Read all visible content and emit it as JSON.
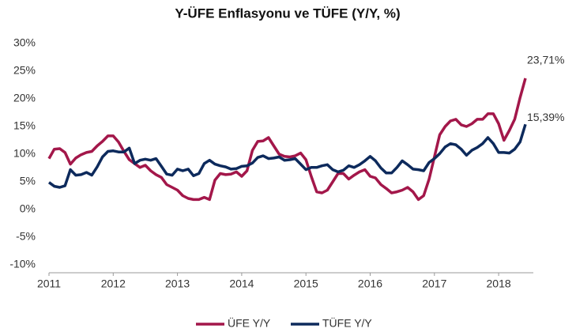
{
  "chart_data": {
    "type": "line",
    "title": "Y-ÜFE Enflasyonu ve TÜFE (Y/Y, %)",
    "x": [
      2011.0,
      2011.083,
      2011.167,
      2011.25,
      2011.333,
      2011.417,
      2011.5,
      2011.583,
      2011.667,
      2011.75,
      2011.833,
      2011.917,
      2012.0,
      2012.083,
      2012.167,
      2012.25,
      2012.333,
      2012.417,
      2012.5,
      2012.583,
      2012.667,
      2012.75,
      2012.833,
      2012.917,
      2013.0,
      2013.083,
      2013.167,
      2013.25,
      2013.333,
      2013.417,
      2013.5,
      2013.583,
      2013.667,
      2013.75,
      2013.833,
      2013.917,
      2014.0,
      2014.083,
      2014.167,
      2014.25,
      2014.333,
      2014.417,
      2014.5,
      2014.583,
      2014.667,
      2014.75,
      2014.833,
      2014.917,
      2015.0,
      2015.083,
      2015.167,
      2015.25,
      2015.333,
      2015.417,
      2015.5,
      2015.583,
      2015.667,
      2015.75,
      2015.833,
      2015.917,
      2016.0,
      2016.083,
      2016.167,
      2016.25,
      2016.333,
      2016.417,
      2016.5,
      2016.583,
      2016.667,
      2016.75,
      2016.833,
      2016.917,
      2017.0,
      2017.083,
      2017.167,
      2017.25,
      2017.333,
      2017.417,
      2017.5,
      2017.583,
      2017.667,
      2017.75,
      2017.833,
      2017.917,
      2018.0,
      2018.083,
      2018.167,
      2018.25,
      2018.333,
      2018.417
    ],
    "series": [
      {
        "name": "ÜFE Y/Y",
        "color": "#a3174a",
        "values": [
          9.2,
          10.9,
          11.0,
          10.3,
          8.2,
          9.3,
          9.9,
          10.3,
          10.5,
          11.5,
          12.3,
          13.3,
          13.3,
          12.2,
          10.5,
          9.0,
          8.3,
          7.6,
          8.0,
          7.0,
          6.3,
          5.8,
          4.5,
          4.0,
          3.5,
          2.5,
          2.0,
          1.8,
          1.8,
          2.2,
          1.8,
          5.3,
          6.5,
          6.3,
          6.4,
          6.8,
          6.0,
          7.0,
          10.7,
          12.3,
          12.4,
          13.0,
          11.5,
          10.0,
          9.6,
          9.5,
          9.7,
          10.2,
          9.0,
          6.0,
          3.2,
          3.0,
          3.5,
          5.0,
          6.5,
          6.5,
          5.5,
          6.2,
          6.8,
          7.2,
          6.0,
          5.7,
          4.5,
          3.8,
          3.0,
          3.2,
          3.5,
          4.0,
          3.2,
          1.8,
          2.5,
          5.5,
          9.5,
          13.5,
          15.0,
          16.0,
          16.3,
          15.3,
          15.0,
          15.5,
          16.3,
          16.3,
          17.3,
          17.3,
          15.5,
          12.5,
          14.3,
          16.3,
          20.2,
          23.71
        ]
      },
      {
        "name": "TÜFE Y/Y",
        "color": "#0d2a5c",
        "values": [
          4.9,
          4.2,
          4.0,
          4.3,
          7.2,
          6.2,
          6.3,
          6.7,
          6.2,
          7.7,
          9.5,
          10.5,
          10.6,
          10.4,
          10.4,
          11.1,
          8.3,
          8.9,
          9.1,
          8.9,
          9.2,
          7.8,
          6.4,
          6.2,
          7.3,
          7.0,
          7.3,
          6.1,
          6.5,
          8.3,
          8.9,
          8.2,
          7.9,
          7.7,
          7.3,
          7.4,
          7.8,
          7.9,
          8.4,
          9.4,
          9.7,
          9.2,
          9.3,
          9.5,
          8.9,
          9.0,
          9.2,
          8.2,
          7.2,
          7.6,
          7.6,
          7.9,
          8.1,
          7.2,
          6.8,
          7.1,
          7.9,
          7.6,
          8.1,
          8.8,
          9.6,
          8.8,
          7.5,
          6.6,
          6.6,
          7.6,
          8.8,
          8.1,
          7.3,
          7.2,
          7.0,
          8.5,
          9.2,
          10.1,
          11.3,
          11.9,
          11.7,
          10.9,
          9.8,
          10.7,
          11.2,
          11.9,
          13.0,
          11.9,
          10.3,
          10.3,
          10.2,
          10.9,
          12.2,
          15.39
        ]
      }
    ],
    "annotations": [
      {
        "label": "23,71%",
        "x": 2018.417,
        "y": 23.71
      },
      {
        "label": "15,39%",
        "x": 2018.417,
        "y": 15.39
      }
    ],
    "xlim": [
      2011,
      2018.417
    ],
    "xticks": [
      2011,
      2012,
      2013,
      2014,
      2015,
      2016,
      2017,
      2018
    ],
    "ylim": [
      -10,
      30
    ],
    "yticks": [
      {
        "value": -10,
        "label": "-10%"
      },
      {
        "value": -5,
        "label": "-5%"
      },
      {
        "value": 0,
        "label": "0%"
      },
      {
        "value": 5,
        "label": "5%"
      },
      {
        "value": 10,
        "label": "10%"
      },
      {
        "value": 15,
        "label": "15%"
      },
      {
        "value": 20,
        "label": "20%"
      },
      {
        "value": 25,
        "label": "25%"
      },
      {
        "value": 30,
        "label": "30%"
      }
    ],
    "legend": "bottom",
    "grid": false
  }
}
